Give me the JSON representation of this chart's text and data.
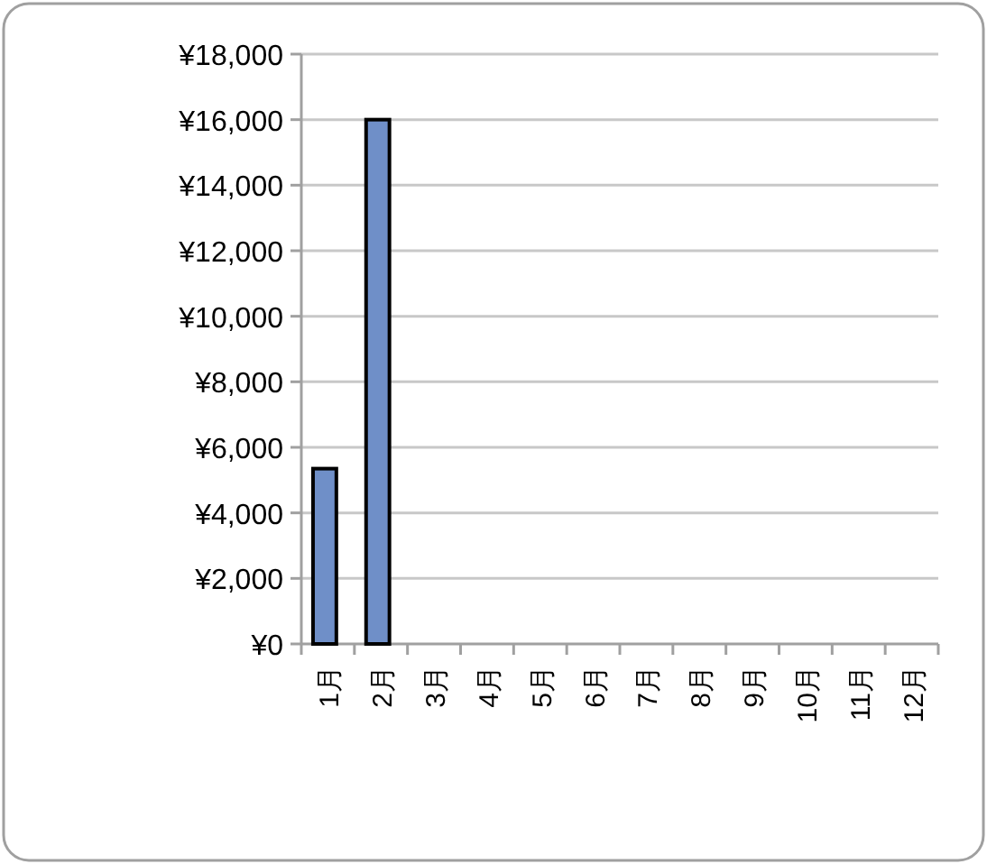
{
  "chart_data": {
    "type": "bar",
    "categories": [
      "1月",
      "2月",
      "3月",
      "4月",
      "5月",
      "6月",
      "7月",
      "8月",
      "9月",
      "10月",
      "11月",
      "12月"
    ],
    "values": [
      5350,
      16000,
      null,
      null,
      null,
      null,
      null,
      null,
      null,
      null,
      null,
      null
    ],
    "color": "#6f8fc8",
    "ylim": [
      0,
      18000
    ],
    "yticks": [
      {
        "value": 0,
        "label": "¥0"
      },
      {
        "value": 2000,
        "label": "¥2,000"
      },
      {
        "value": 4000,
        "label": "¥4,000"
      },
      {
        "value": 6000,
        "label": "¥6,000"
      },
      {
        "value": 8000,
        "label": "¥8,000"
      },
      {
        "value": 10000,
        "label": "¥10,000"
      },
      {
        "value": 12000,
        "label": "¥12,000"
      },
      {
        "value": 14000,
        "label": "¥14,000"
      },
      {
        "value": 16000,
        "label": "¥16,000"
      },
      {
        "value": 18000,
        "label": "¥18,000"
      }
    ],
    "grid": "y"
  }
}
